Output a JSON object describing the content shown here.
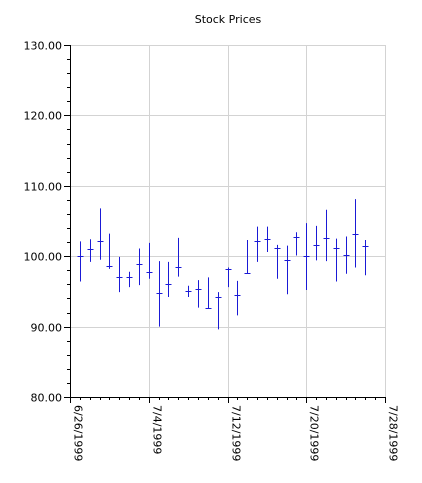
{
  "chart_data": {
    "type": "ohlc",
    "title": "Stock Prices",
    "xlabel": "",
    "ylabel": "",
    "ylim": [
      80,
      130
    ],
    "y_ticks": [
      80,
      90,
      100,
      110,
      120,
      130
    ],
    "y_tick_labels": [
      "80.00",
      "90.00",
      "100.00",
      "110.00",
      "120.00",
      "130.00"
    ],
    "x_ticks": [
      "1999-06-26",
      "1999-07-04",
      "1999-07-12",
      "1999-07-20",
      "1999-07-28"
    ],
    "x_tick_labels": [
      "6/26/1999",
      "7/4/1999",
      "7/12/1999",
      "7/20/1999",
      "7/28/1999"
    ],
    "xlim": [
      "1999-06-26",
      "1999-07-28"
    ],
    "grid": true,
    "series_color": "#1a1ad6",
    "series": [
      {
        "date": "1999-06-27",
        "open": 100.0,
        "high": 102.1,
        "low": 96.4,
        "close": 100.0
      },
      {
        "date": "1999-06-28",
        "open": 101.0,
        "high": 102.4,
        "low": 99.2,
        "close": 101.0
      },
      {
        "date": "1999-06-29",
        "open": 102.1,
        "high": 106.8,
        "low": 99.5,
        "close": 102.1
      },
      {
        "date": "1999-06-30",
        "open": 98.6,
        "high": 103.2,
        "low": 98.2,
        "close": 98.6
      },
      {
        "date": "1999-07-01",
        "open": 97.0,
        "high": 99.9,
        "low": 94.9,
        "close": 97.0
      },
      {
        "date": "1999-07-02",
        "open": 97.0,
        "high": 97.8,
        "low": 95.6,
        "close": 97.0
      },
      {
        "date": "1999-07-03",
        "open": 98.9,
        "high": 101.1,
        "low": 95.9,
        "close": 98.9
      },
      {
        "date": "1999-07-04",
        "open": 97.7,
        "high": 101.9,
        "low": 96.8,
        "close": 97.7
      },
      {
        "date": "1999-07-05",
        "open": 94.8,
        "high": 99.3,
        "low": 90.0,
        "close": 94.8
      },
      {
        "date": "1999-07-06",
        "open": 96.0,
        "high": 99.2,
        "low": 94.2,
        "close": 96.0
      },
      {
        "date": "1999-07-07",
        "open": 98.5,
        "high": 102.6,
        "low": 97.1,
        "close": 98.5
      },
      {
        "date": "1999-07-08",
        "open": 95.0,
        "high": 95.8,
        "low": 94.2,
        "close": 95.0
      },
      {
        "date": "1999-07-09",
        "open": 95.4,
        "high": 96.6,
        "low": 92.7,
        "close": 95.4
      },
      {
        "date": "1999-07-10",
        "open": 92.6,
        "high": 97.0,
        "low": 92.6,
        "close": 92.6
      },
      {
        "date": "1999-07-11",
        "open": 94.2,
        "high": 94.9,
        "low": 89.6,
        "close": 94.2
      },
      {
        "date": "1999-07-12",
        "open": 98.2,
        "high": 98.4,
        "low": 95.6,
        "close": 98.2
      },
      {
        "date": "1999-07-13",
        "open": 94.5,
        "high": 96.5,
        "low": 91.6,
        "close": 94.5
      },
      {
        "date": "1999-07-14",
        "open": 97.6,
        "high": 102.3,
        "low": 97.6,
        "close": 97.6
      },
      {
        "date": "1999-07-15",
        "open": 102.1,
        "high": 104.2,
        "low": 99.2,
        "close": 102.1
      },
      {
        "date": "1999-07-16",
        "open": 102.4,
        "high": 104.2,
        "low": 100.6,
        "close": 102.4
      },
      {
        "date": "1999-07-17",
        "open": 101.2,
        "high": 101.6,
        "low": 96.8,
        "close": 101.2
      },
      {
        "date": "1999-07-18",
        "open": 99.5,
        "high": 101.5,
        "low": 94.6,
        "close": 99.5
      },
      {
        "date": "1999-07-19",
        "open": 102.7,
        "high": 103.4,
        "low": 100.1,
        "close": 102.7
      },
      {
        "date": "1999-07-20",
        "open": 100.0,
        "high": 104.7,
        "low": 95.2,
        "close": 100.0
      },
      {
        "date": "1999-07-21",
        "open": 101.6,
        "high": 104.3,
        "low": 99.4,
        "close": 101.6
      },
      {
        "date": "1999-07-22",
        "open": 102.6,
        "high": 106.6,
        "low": 99.3,
        "close": 102.6
      },
      {
        "date": "1999-07-23",
        "open": 101.1,
        "high": 102.5,
        "low": 96.4,
        "close": 101.1
      },
      {
        "date": "1999-07-24",
        "open": 100.2,
        "high": 102.8,
        "low": 97.5,
        "close": 100.2
      },
      {
        "date": "1999-07-25",
        "open": 103.2,
        "high": 108.1,
        "low": 98.4,
        "close": 103.2
      },
      {
        "date": "1999-07-26",
        "open": 101.5,
        "high": 102.3,
        "low": 97.3,
        "close": 101.5
      }
    ]
  }
}
